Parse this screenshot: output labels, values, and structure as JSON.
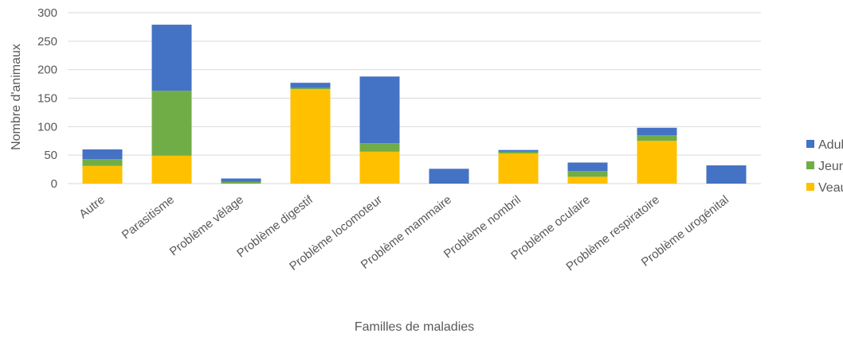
{
  "chart_data": {
    "type": "bar",
    "stacked": true,
    "categories": [
      "Autre",
      "Parasitisme",
      "Problème vêlage",
      "Problème digestif",
      "Problème locomoteur",
      "Problème mammaire",
      "Problème nombril",
      "Problème oculaire",
      "Problème respiratoire",
      "Problème urogénital"
    ],
    "series": [
      {
        "name": "Veau",
        "color": "#ffc000",
        "values": [
          31,
          49,
          0,
          166,
          56,
          0,
          53,
          12,
          75,
          0
        ]
      },
      {
        "name": "Jeune",
        "color": "#70ad47",
        "values": [
          12,
          114,
          3,
          2,
          15,
          0,
          3,
          10,
          10,
          0
        ]
      },
      {
        "name": "Adulte",
        "color": "#4472c4",
        "values": [
          17,
          116,
          6,
          9,
          117,
          26,
          3,
          15,
          13,
          32
        ]
      }
    ],
    "legend_order": [
      "Adulte",
      "Jeune",
      "Veau"
    ],
    "legend_position": "right",
    "xlabel": "Familles de maladies",
    "ylabel": "Nombre d'animaux",
    "ylim": [
      0,
      300
    ],
    "yticks": [
      0,
      50,
      100,
      150,
      200,
      250,
      300
    ],
    "grid": true
  }
}
